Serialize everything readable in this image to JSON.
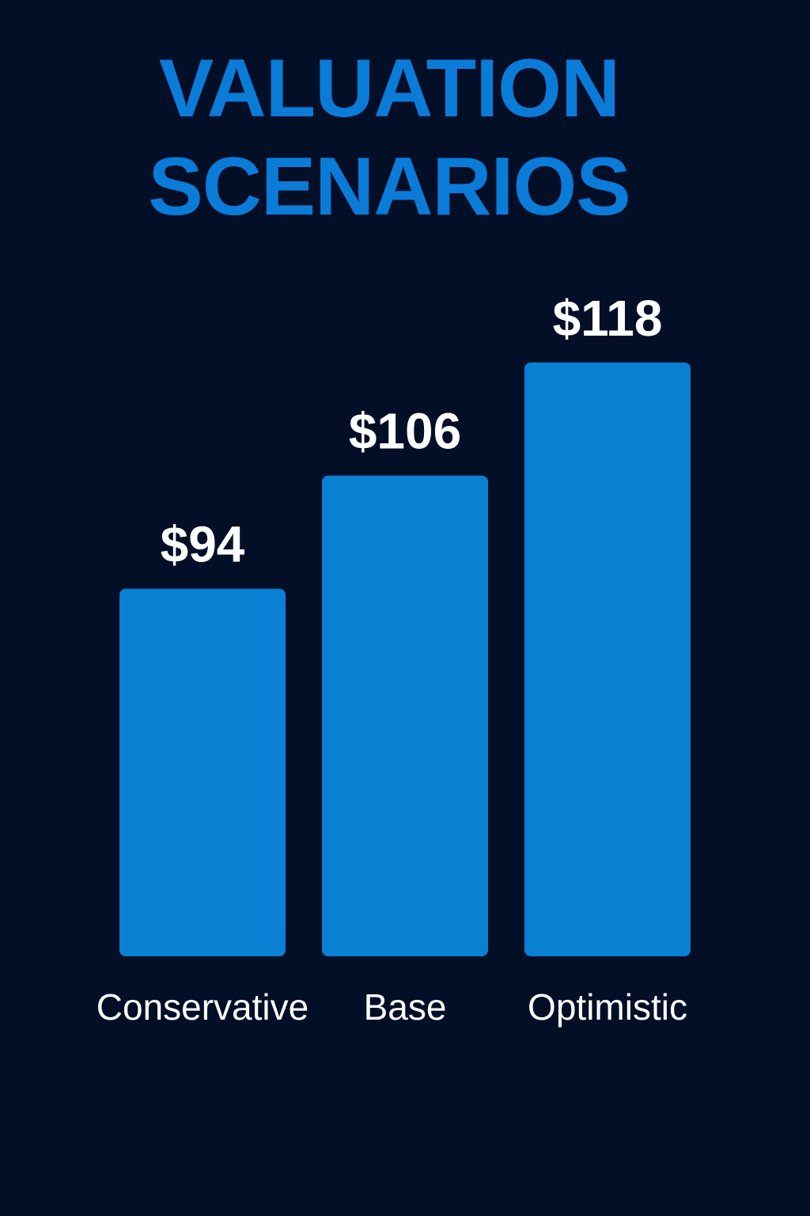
{
  "chart_data": {
    "type": "bar",
    "title": "VALUATION SCENARIOS",
    "categories": [
      "Conservative",
      "Base",
      "Optimistic"
    ],
    "values": [
      94,
      106,
      118
    ],
    "value_labels": [
      "$94",
      "$106",
      "$118"
    ],
    "color": "#0a80d2",
    "ylim": [
      55,
      120
    ]
  }
}
